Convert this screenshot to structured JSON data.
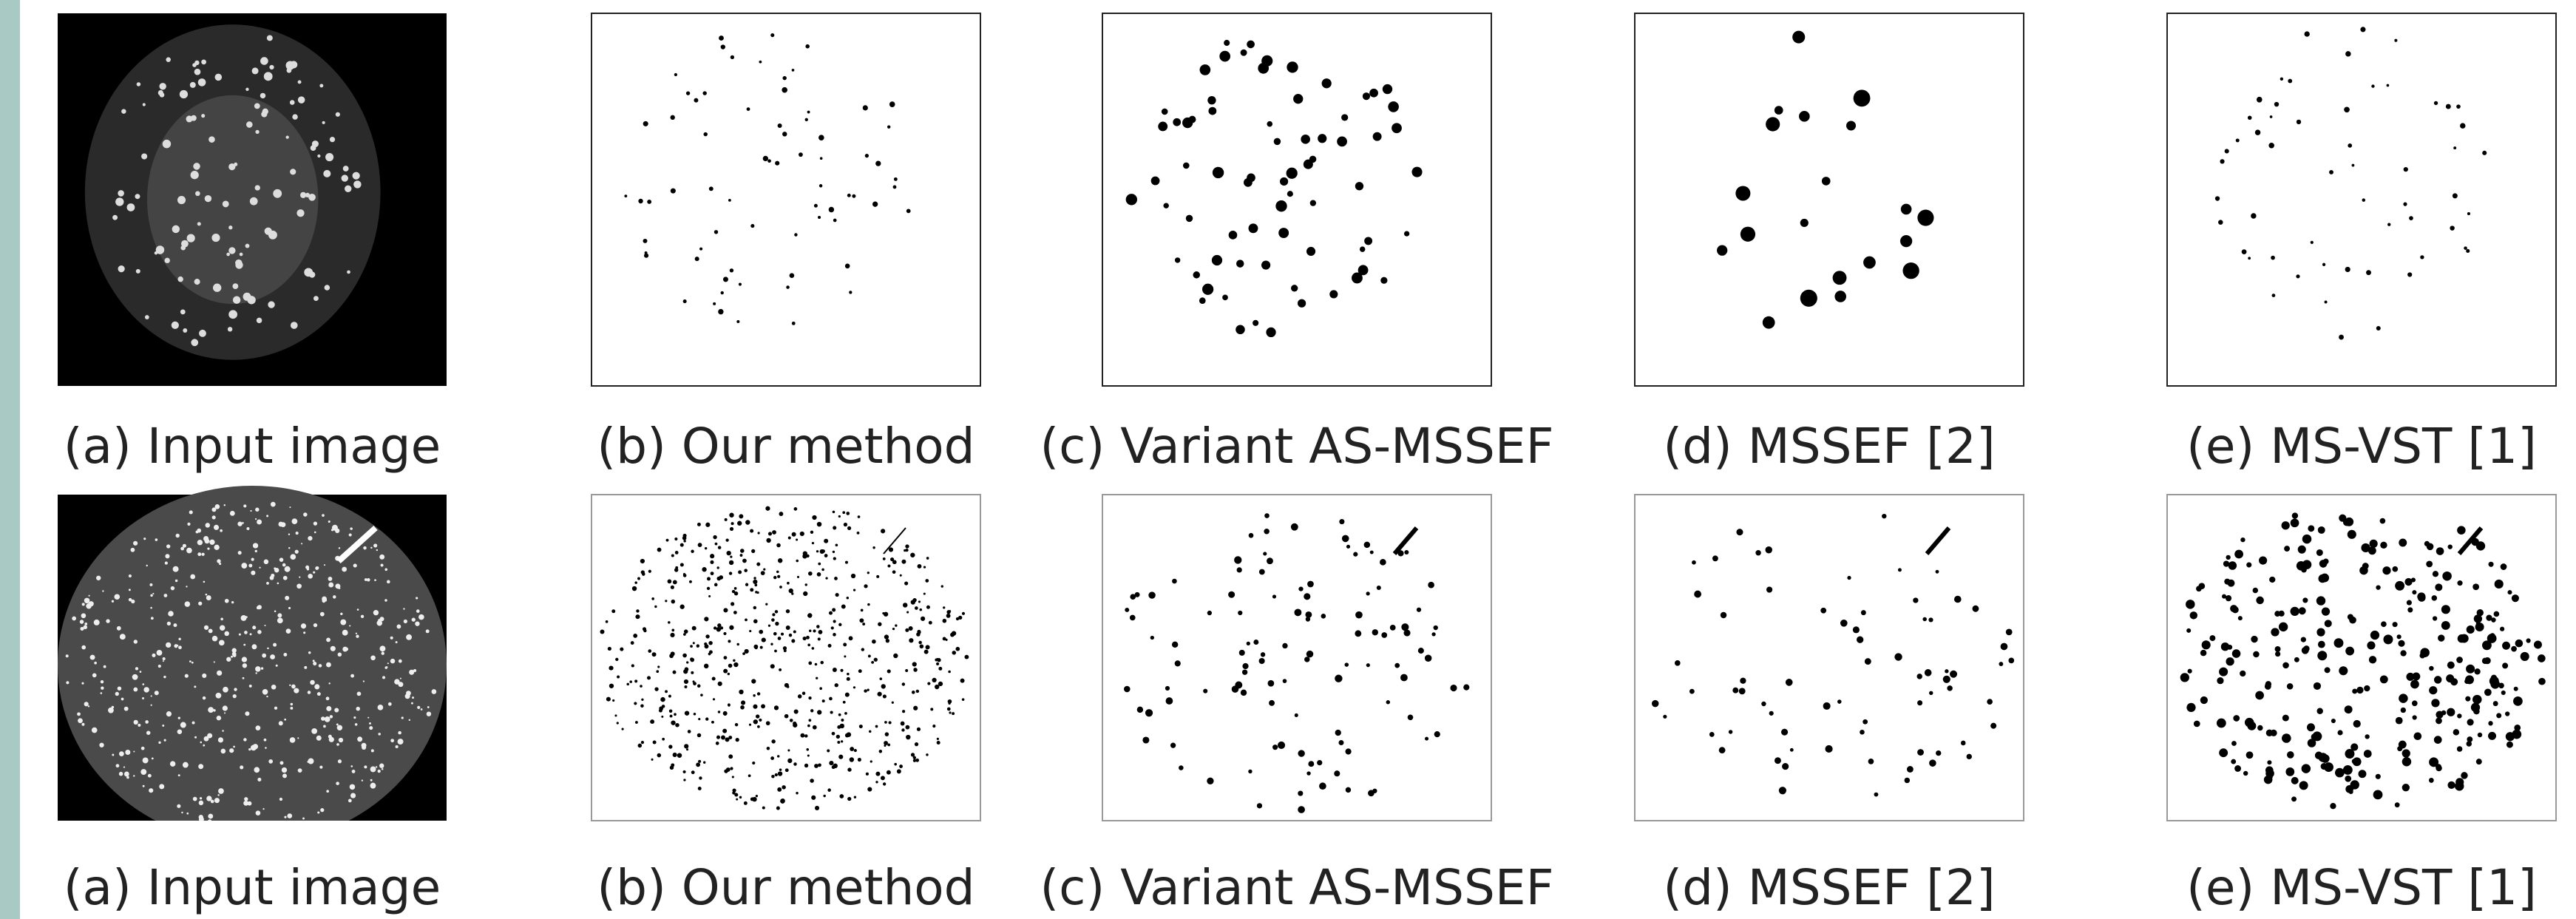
{
  "rows": [
    {
      "panels": [
        {
          "caption": "(a) Input image"
        },
        {
          "caption": "(b) Our method"
        },
        {
          "caption": "(c) Variant AS-MSSEF"
        },
        {
          "caption": "(d) MSSEF [2]"
        },
        {
          "caption": "(e) MS-VST [1]"
        }
      ]
    },
    {
      "panels": [
        {
          "caption": "(a) Input image"
        },
        {
          "caption": "(b) Our method"
        },
        {
          "caption": "(c) Variant AS-MSSEF"
        },
        {
          "caption": "(d) MSSEF [2]"
        },
        {
          "caption": "(e) MS-VST [1]"
        }
      ]
    }
  ]
}
